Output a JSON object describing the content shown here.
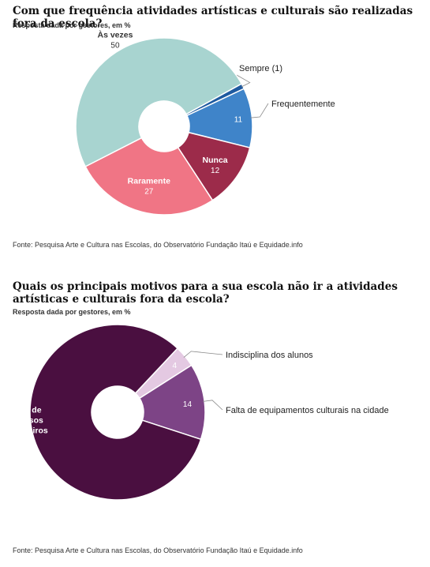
{
  "chart_data": [
    {
      "type": "pie",
      "title": "Com que frequência atividades artísticas e culturais são realizadas fora da escola?",
      "subtitle": "Resposta dada por gestores, em %",
      "source": "Fonte: Pesquisa Arte e Cultura nas Escolas, do Observatório Fundação Itaú e Equidade.info",
      "slices": [
        {
          "name": "Sempre (1)",
          "value": 1,
          "color": "#1e5aa0",
          "label_value": ""
        },
        {
          "name": "Frequentemente",
          "value": 11,
          "color": "#3f84c9",
          "label_value": "11"
        },
        {
          "name": "Nunca",
          "value": 12,
          "color": "#9c2b4a",
          "label_value": "12"
        },
        {
          "name": "Raramente",
          "value": 27,
          "color": "#f07585",
          "label_value": "27"
        },
        {
          "name": "Às vezes",
          "value": 50,
          "color": "#a8d4d0",
          "label_value": "50"
        }
      ]
    },
    {
      "type": "pie",
      "title": "Quais os principais motivos para a sua escola não ir a atividades artísticas e culturais fora da escola?",
      "subtitle": "Resposta dada por gestores, em %",
      "source": "Fonte: Pesquisa Arte e Cultura nas Escolas, do Observatório Fundação Itaú e Equidade.info",
      "slices": [
        {
          "name": "Indisciplina dos alunos",
          "value": 4,
          "color": "#e4c9e2",
          "label_value": "4"
        },
        {
          "name": "Falta de equipamentos culturais na cidade",
          "value": 14,
          "color": "#7d4486",
          "label_value": "14"
        },
        {
          "name": "Falta de recursos financeiros",
          "value": 82,
          "color": "#4a0f40",
          "label_value": "82"
        }
      ]
    }
  ]
}
